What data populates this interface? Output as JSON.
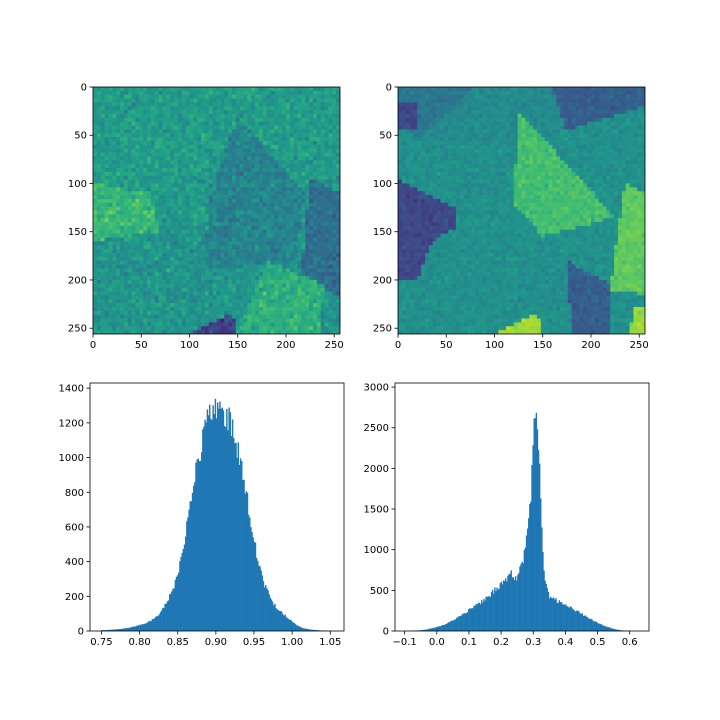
{
  "figure": {
    "background": "#ffffff",
    "colors": {
      "bars": "#1f77b4",
      "axis": "#000000"
    }
  },
  "chart_data": [
    {
      "type": "heatmap",
      "colormap": "viridis",
      "extent_px": [
        256,
        256
      ],
      "xlim": [
        0,
        256
      ],
      "ylim": [
        256,
        0
      ],
      "xticks": [
        0,
        50,
        100,
        150,
        200,
        250
      ],
      "yticks": [
        0,
        50,
        100,
        150,
        200,
        250
      ],
      "xtick_labels": [
        "0",
        "50",
        "100",
        "150",
        "200",
        "250"
      ],
      "ytick_labels": [
        "0",
        "50",
        "100",
        "150",
        "200",
        "250"
      ],
      "title": "",
      "xlabel": "",
      "ylabel": "",
      "base_level": 0.52,
      "noise": 0.16,
      "regions": [
        {
          "points": [
            [
              0,
              0
            ],
            [
              256,
              0
            ],
            [
              256,
              90
            ],
            [
              100,
              140
            ],
            [
              0,
              120
            ]
          ],
          "level": 0.55
        },
        {
          "points": [
            [
              0,
              100
            ],
            [
              60,
              110
            ],
            [
              70,
              150
            ],
            [
              0,
              160
            ]
          ],
          "level": 0.66
        },
        {
          "points": [
            [
              120,
              120
            ],
            [
              150,
              30
            ],
            [
              220,
              110
            ],
            [
              210,
              180
            ],
            [
              115,
              190
            ]
          ],
          "level": 0.45
        },
        {
          "points": [
            [
              225,
              95
            ],
            [
              256,
              110
            ],
            [
              256,
              215
            ],
            [
              215,
              210
            ]
          ],
          "level": 0.36
        },
        {
          "points": [
            [
              180,
              180
            ],
            [
              240,
              205
            ],
            [
              235,
              256
            ],
            [
              150,
              256
            ]
          ],
          "level": 0.63
        },
        {
          "points": [
            [
              0,
              165
            ],
            [
              70,
              150
            ],
            [
              100,
              200
            ],
            [
              40,
              256
            ],
            [
              0,
              256
            ]
          ],
          "level": 0.52
        },
        {
          "points": [
            [
              100,
              256
            ],
            [
              145,
              233
            ],
            [
              148,
              256
            ]
          ],
          "level": 0.2
        }
      ]
    },
    {
      "type": "heatmap",
      "colormap": "viridis",
      "extent_px": [
        256,
        256
      ],
      "xlim": [
        0,
        256
      ],
      "ylim": [
        256,
        0
      ],
      "xticks": [
        0,
        50,
        100,
        150,
        200,
        250
      ],
      "yticks": [
        0,
        50,
        100,
        150,
        200,
        250
      ],
      "xtick_labels": [
        "0",
        "50",
        "100",
        "150",
        "200",
        "250"
      ],
      "ytick_labels": [
        "0",
        "50",
        "100",
        "150",
        "200",
        "250"
      ],
      "title": "",
      "xlabel": "",
      "ylabel": "",
      "base_level": 0.5,
      "noise": 0.09,
      "regions": [
        {
          "points": [
            [
              0,
              0
            ],
            [
              80,
              0
            ],
            [
              20,
              55
            ],
            [
              0,
              30
            ]
          ],
          "level": 0.4
        },
        {
          "points": [
            [
              0,
              15
            ],
            [
              20,
              15
            ],
            [
              20,
              45
            ],
            [
              0,
              45
            ]
          ],
          "level": 0.22
        },
        {
          "points": [
            [
              80,
              0
            ],
            [
              160,
              0
            ],
            [
              170,
              40
            ],
            [
              150,
              60
            ],
            [
              20,
              55
            ]
          ],
          "level": 0.48
        },
        {
          "points": [
            [
              160,
              0
            ],
            [
              256,
              0
            ],
            [
              256,
              20
            ],
            [
              175,
              45
            ]
          ],
          "level": 0.3
        },
        {
          "points": [
            [
              0,
              95
            ],
            [
              60,
              125
            ],
            [
              60,
              145
            ],
            [
              35,
              160
            ],
            [
              20,
              200
            ],
            [
              0,
              200
            ]
          ],
          "level": 0.22
        },
        {
          "points": [
            [
              125,
              25
            ],
            [
              225,
              135
            ],
            [
              150,
              155
            ],
            [
              120,
              120
            ]
          ],
          "level": 0.7
        },
        {
          "points": [
            [
              235,
              100
            ],
            [
              256,
              110
            ],
            [
              256,
              215
            ],
            [
              220,
              210
            ]
          ],
          "level": 0.75
        },
        {
          "points": [
            [
              175,
              180
            ],
            [
              220,
              205
            ],
            [
              220,
              256
            ],
            [
              180,
              256
            ]
          ],
          "level": 0.3
        },
        {
          "points": [
            [
              100,
              256
            ],
            [
              145,
              233
            ],
            [
              148,
              256
            ]
          ],
          "level": 0.85
        },
        {
          "points": [
            [
              245,
              230
            ],
            [
              256,
              226
            ],
            [
              256,
              256
            ],
            [
              240,
              256
            ]
          ],
          "level": 0.85
        }
      ]
    },
    {
      "type": "bar",
      "subtype": "histogram",
      "bar_color": "#1f77b4",
      "x_range": [
        0.75,
        1.05
      ],
      "xlim": [
        0.735,
        1.068
      ],
      "ylim": [
        0,
        1430
      ],
      "xticks": [
        0.75,
        0.8,
        0.85,
        0.9,
        0.95,
        1.0,
        1.05
      ],
      "xtick_labels": [
        "0.75",
        "0.80",
        "0.85",
        "0.90",
        "0.95",
        "1.00",
        "1.05"
      ],
      "yticks": [
        0,
        200,
        400,
        600,
        800,
        1000,
        1200,
        1400
      ],
      "ytick_labels": [
        "0",
        "200",
        "400",
        "600",
        "800",
        "1000",
        "1200",
        "1400"
      ],
      "title": "",
      "xlabel": "",
      "ylabel": "",
      "x": [
        0.755,
        0.765,
        0.775,
        0.785,
        0.795,
        0.805,
        0.815,
        0.825,
        0.835,
        0.845,
        0.855,
        0.865,
        0.875,
        0.885,
        0.895,
        0.905,
        0.915,
        0.925,
        0.935,
        0.945,
        0.955,
        0.965,
        0.975,
        0.985,
        0.995,
        1.005,
        1.015,
        1.025,
        1.035,
        1.045
      ],
      "values": [
        5,
        8,
        12,
        18,
        28,
        40,
        60,
        95,
        160,
        250,
        420,
        700,
        950,
        1150,
        1290,
        1310,
        1240,
        1120,
        920,
        640,
        400,
        250,
        160,
        110,
        75,
        35,
        15,
        8,
        4,
        2
      ]
    },
    {
      "type": "bar",
      "subtype": "histogram",
      "bar_color": "#1f77b4",
      "x_range": [
        -0.08,
        0.6
      ],
      "xlim": [
        -0.13,
        0.66
      ],
      "ylim": [
        0,
        3050
      ],
      "xticks": [
        -0.1,
        0.0,
        0.1,
        0.2,
        0.3,
        0.4,
        0.5,
        0.6
      ],
      "xtick_labels": [
        "−0.1",
        "0.0",
        "0.1",
        "0.2",
        "0.3",
        "0.4",
        "0.5",
        "0.6"
      ],
      "yticks": [
        0,
        500,
        1000,
        1500,
        2000,
        2500,
        3000
      ],
      "ytick_labels": [
        "0",
        "500",
        "1000",
        "1500",
        "2000",
        "2500",
        "3000"
      ],
      "title": "",
      "xlabel": "",
      "ylabel": "",
      "x": [
        -0.07,
        -0.05,
        -0.03,
        -0.01,
        0.01,
        0.03,
        0.05,
        0.07,
        0.09,
        0.11,
        0.13,
        0.15,
        0.17,
        0.19,
        0.21,
        0.23,
        0.25,
        0.27,
        0.29,
        0.305,
        0.315,
        0.325,
        0.335,
        0.35,
        0.37,
        0.39,
        0.41,
        0.43,
        0.45,
        0.47,
        0.49,
        0.51,
        0.53,
        0.55,
        0.57,
        0.59
      ],
      "values": [
        5,
        10,
        20,
        40,
        60,
        90,
        130,
        180,
        230,
        280,
        330,
        390,
        460,
        540,
        620,
        700,
        650,
        900,
        1500,
        2700,
        2500,
        1300,
        600,
        420,
        380,
        330,
        300,
        260,
        210,
        160,
        120,
        80,
        50,
        25,
        10,
        4
      ]
    }
  ]
}
